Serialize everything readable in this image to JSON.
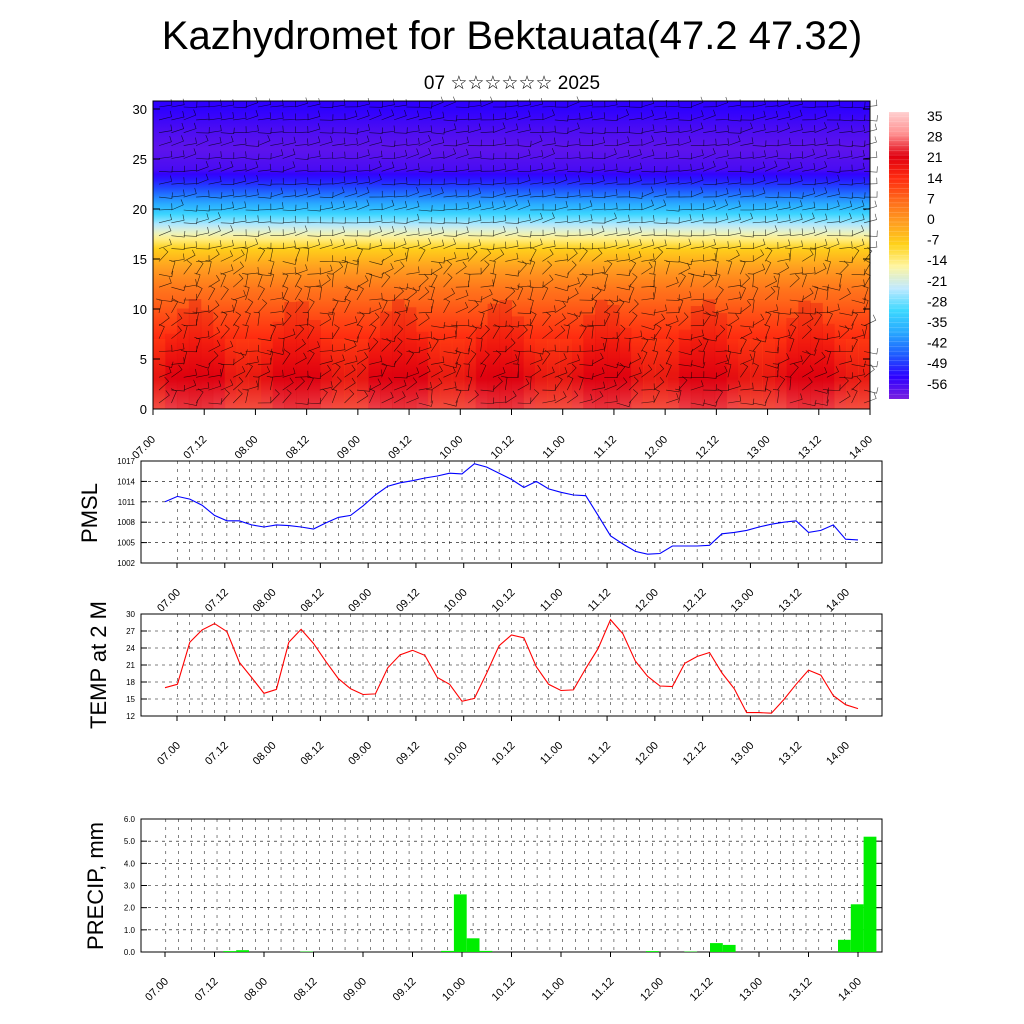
{
  "title": "Kazhydromet for Bektauata(47.2 47.32)",
  "subtitle": "07 ☆☆☆☆☆☆ 2025",
  "colors": {
    "pmsl_line": "#0000ff",
    "temp_line": "#ff0000",
    "precip_bar": "#00ee00",
    "colorbar": [
      "#7a1fe0",
      "#2d00ff",
      "#1e5cff",
      "#28a8ff",
      "#3cd8ff",
      "#bfe9ff",
      "#fff5a0",
      "#ffd21a",
      "#ff9e20",
      "#ff6a1a",
      "#ff2b10",
      "#e00010",
      "#ff8f8f",
      "#ffd0d0"
    ]
  },
  "chart_data": [
    {
      "type": "heatmap",
      "title": "",
      "xlabel": "",
      "ylabel": "",
      "x_ticks": [
        "07.00",
        "07.12",
        "08.00",
        "08.12",
        "09.00",
        "09.12",
        "10.00",
        "10.12",
        "11.00",
        "11.12",
        "12.00",
        "12.12",
        "13.00",
        "13.12",
        "14.00"
      ],
      "y_ticks": [
        "0",
        "5",
        "10",
        "15",
        "20",
        "25",
        "30"
      ],
      "ylim": [
        0,
        30.8
      ],
      "colorbar_labels": [
        "35",
        "28",
        "21",
        "14",
        "7",
        "0",
        "-7",
        "-14",
        "-21",
        "-28",
        "-35",
        "-42",
        "-49",
        "-56"
      ],
      "overlay": "wind barbs",
      "temperature_profile": {
        "levels": [
          0,
          3,
          6,
          9,
          12,
          14,
          16,
          18,
          20,
          22,
          24,
          26,
          28,
          30
        ],
        "values": [
          30,
          26,
          20,
          14,
          8,
          2,
          -6,
          -20,
          -35,
          -48,
          -58,
          -60,
          -58,
          -55
        ]
      }
    },
    {
      "type": "line",
      "ylabel": "PMSL",
      "x_ticks": [
        "07.00",
        "07.12",
        "08.00",
        "08.12",
        "09.00",
        "09.12",
        "10.00",
        "10.12",
        "11.00",
        "11.12",
        "12.00",
        "12.12",
        "13.00",
        "13.12",
        "14.00"
      ],
      "y_ticks": [
        "1017",
        "1014",
        "1011",
        "1008",
        "1005",
        "1002"
      ],
      "ylim": [
        1002,
        1017
      ],
      "series": [
        {
          "values": [
            1011.0,
            1011.8,
            1011.4,
            1010.5,
            1009.0,
            1008.2,
            1008.2,
            1007.6,
            1007.3,
            1007.6,
            1007.5,
            1007.3,
            1007.0,
            1007.9,
            1008.7,
            1009.0,
            1010.4,
            1012.0,
            1013.3,
            1013.8,
            1014.1,
            1014.5,
            1014.8,
            1015.2,
            1015.1,
            1016.6,
            1016.1,
            1015.2,
            1014.3,
            1013.1,
            1014.0,
            1012.9,
            1012.4,
            1012.0,
            1011.9,
            1009.0,
            1006.0,
            1004.8,
            1003.7,
            1003.3,
            1003.4,
            1004.5,
            1004.5,
            1004.5,
            1004.6,
            1006.3,
            1006.5,
            1006.8,
            1007.3,
            1007.7,
            1008.0,
            1008.2,
            1006.5,
            1006.8,
            1007.6,
            1005.5,
            1005.4
          ]
        }
      ]
    },
    {
      "type": "line",
      "ylabel": "TEMP at 2 M",
      "x_ticks": [
        "07.00",
        "07.12",
        "08.00",
        "08.12",
        "09.00",
        "09.12",
        "10.00",
        "10.12",
        "11.00",
        "11.12",
        "12.00",
        "12.12",
        "13.00",
        "13.12",
        "14.00"
      ],
      "y_ticks": [
        "30",
        "27",
        "24",
        "21",
        "18",
        "15",
        "12"
      ],
      "ylim": [
        12,
        30
      ],
      "series": [
        {
          "values": [
            17.0,
            17.6,
            25.0,
            27.2,
            28.3,
            26.9,
            21.5,
            18.8,
            16.0,
            16.7,
            25.0,
            27.3,
            24.8,
            21.6,
            18.6,
            16.8,
            15.8,
            15.9,
            20.5,
            22.8,
            23.6,
            22.7,
            18.8,
            17.6,
            14.6,
            15.1,
            19.6,
            24.4,
            26.3,
            25.8,
            20.7,
            17.6,
            16.5,
            16.6,
            20.4,
            23.9,
            29.0,
            26.5,
            21.7,
            19.0,
            17.3,
            17.2,
            21.3,
            22.5,
            23.2,
            19.6,
            16.8,
            12.6,
            12.6,
            12.5,
            14.9,
            17.6,
            20.1,
            19.2,
            15.6,
            14.0,
            13.3
          ]
        }
      ]
    },
    {
      "type": "bar",
      "ylabel": "PRECIP, mm",
      "x_ticks": [
        "07.00",
        "07.12",
        "08.00",
        "08.12",
        "09.00",
        "09.12",
        "10.00",
        "10.12",
        "11.00",
        "11.12",
        "12.00",
        "12.12",
        "13.00",
        "13.12",
        "14.00"
      ],
      "y_ticks": [
        "6.0",
        "5.0",
        "4.0",
        "3.0",
        "2.0",
        "1.0",
        "0.0"
      ],
      "ylim": [
        0,
        6
      ],
      "series": [
        {
          "values": [
            0,
            0,
            0,
            0,
            0,
            0,
            0.04,
            0.08,
            0,
            0,
            0,
            0,
            0.02,
            0,
            0,
            0,
            0,
            0,
            0,
            0,
            0,
            0,
            0,
            0.05,
            2.6,
            0.62,
            0.05,
            0,
            0,
            0,
            0,
            0,
            0,
            0,
            0,
            0,
            0,
            0,
            0,
            0.04,
            0,
            0,
            0.02,
            0,
            0.4,
            0.32,
            0,
            0,
            0,
            0,
            0,
            0,
            0,
            0,
            0.55,
            2.15,
            5.2
          ]
        }
      ]
    }
  ]
}
